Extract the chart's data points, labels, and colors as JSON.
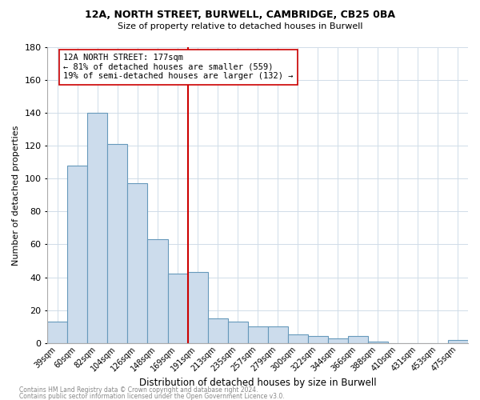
{
  "title1": "12A, NORTH STREET, BURWELL, CAMBRIDGE, CB25 0BA",
  "title2": "Size of property relative to detached houses in Burwell",
  "xlabel": "Distribution of detached houses by size in Burwell",
  "ylabel": "Number of detached properties",
  "footer1": "Contains HM Land Registry data © Crown copyright and database right 2024.",
  "footer2": "Contains public sector information licensed under the Open Government Licence v3.0.",
  "categories": [
    "39sqm",
    "60sqm",
    "82sqm",
    "104sqm",
    "126sqm",
    "148sqm",
    "169sqm",
    "191sqm",
    "213sqm",
    "235sqm",
    "257sqm",
    "279sqm",
    "300sqm",
    "322sqm",
    "344sqm",
    "366sqm",
    "388sqm",
    "410sqm",
    "431sqm",
    "453sqm",
    "475sqm"
  ],
  "values": [
    13,
    108,
    140,
    121,
    97,
    63,
    42,
    43,
    15,
    13,
    10,
    10,
    5,
    4,
    3,
    4,
    1,
    0,
    0,
    0,
    2
  ],
  "bar_color": "#ccdcec",
  "bar_edge_color": "#6699bb",
  "ref_line_color": "#cc0000",
  "annotation_text": "12A NORTH STREET: 177sqm\n← 81% of detached houses are smaller (559)\n19% of semi-detached houses are larger (132) →",
  "annotation_box_color": "#ffffff",
  "annotation_box_edge": "#cc0000",
  "ylim": [
    0,
    180
  ],
  "yticks": [
    0,
    20,
    40,
    60,
    80,
    100,
    120,
    140,
    160,
    180
  ],
  "background_color": "#ffffff",
  "grid_color": "#d0dce8"
}
